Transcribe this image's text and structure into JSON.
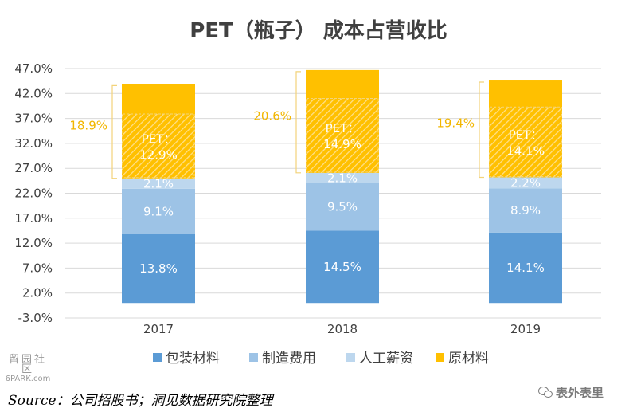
{
  "chart_data": {
    "type": "bar",
    "stacked": true,
    "title": "PET（瓶子） 成本占营收比",
    "categories": [
      "2017",
      "2018",
      "2019"
    ],
    "y_ticks": [
      "47.0%",
      "42.0%",
      "37.0%",
      "32.0%",
      "27.0%",
      "22.0%",
      "17.0%",
      "12.0%",
      "7.0%",
      "2.0%",
      "-3.0%"
    ],
    "ylim": [
      -3.0,
      47.0
    ],
    "grid": true,
    "legend_position": "bottom",
    "series": [
      {
        "name": "包装材料",
        "color": "#5b9bd5",
        "values": [
          13.8,
          14.5,
          14.1
        ],
        "labels": [
          "13.8%",
          "14.5%",
          "14.1%"
        ]
      },
      {
        "name": "制造费用",
        "color": "#9dc3e6",
        "values": [
          9.1,
          9.5,
          8.9
        ],
        "labels": [
          "9.1%",
          "9.5%",
          "8.9%"
        ]
      },
      {
        "name": "人工薪资",
        "color": "#bdd7ee",
        "values": [
          2.1,
          2.1,
          2.2
        ],
        "labels": [
          "2.1%",
          "2.1%",
          "2.2%"
        ]
      },
      {
        "name": "原材料",
        "color": "#ffc000",
        "values": [
          18.9,
          20.6,
          19.4
        ]
      }
    ],
    "pet_labels": [
      {
        "line1": "PET：",
        "line2": "12.9%",
        "value": 12.9
      },
      {
        "line1": "PET：",
        "line2": "14.9%",
        "value": 14.9
      },
      {
        "line1": "PET：",
        "line2": "14.1%",
        "value": 14.1
      }
    ],
    "bracket_labels": [
      "18.9%",
      "20.6%",
      "19.4%"
    ]
  },
  "footer": {
    "source": "Source：公司招股书；洞见数据研究院整理"
  },
  "watermarks": {
    "left_top": "留园社区",
    "left_bottom": "6PARK.com",
    "right": "表外表里"
  }
}
